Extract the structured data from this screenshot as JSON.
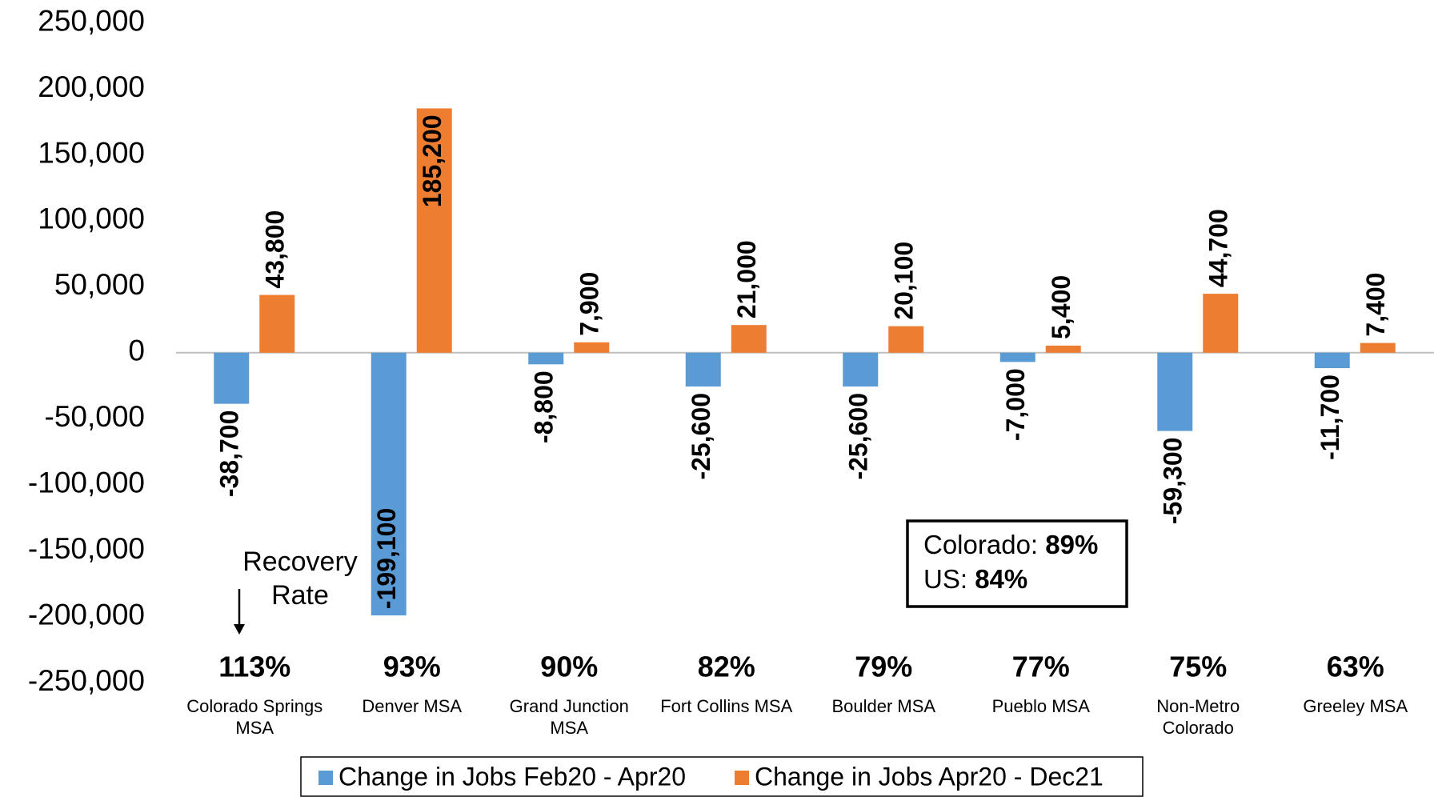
{
  "chart_data": {
    "type": "bar",
    "categories": [
      [
        "Colorado Springs",
        "MSA"
      ],
      [
        "Denver MSA"
      ],
      [
        "Grand Junction",
        "MSA"
      ],
      [
        "Fort Collins MSA"
      ],
      [
        "Boulder MSA"
      ],
      [
        "Pueblo MSA"
      ],
      [
        "Non-Metro",
        "Colorado"
      ],
      [
        "Greeley MSA"
      ]
    ],
    "series": [
      {
        "name": "Change in Jobs Feb20 - Apr20",
        "color": "#5b9bd5",
        "values": [
          -38700,
          -199100,
          -8800,
          -25600,
          -25600,
          -7000,
          -59300,
          -11700
        ],
        "value_labels": [
          "-38,700",
          "-199,100",
          "-8,800",
          "-25,600",
          "-25,600",
          "-7,000",
          "-59,300",
          "-11,700"
        ]
      },
      {
        "name": "Change in Jobs Apr20 - Dec21",
        "color": "#ed7d31",
        "values": [
          43800,
          185200,
          7900,
          21000,
          20100,
          5400,
          44700,
          7400
        ],
        "value_labels": [
          "43,800",
          "185,200",
          "7,900",
          "21,000",
          "20,100",
          "5,400",
          "44,700",
          "7,400"
        ]
      }
    ],
    "recovery_rates": [
      113,
      93,
      90,
      82,
      79,
      77,
      75,
      63
    ],
    "recovery_rate_labels": [
      "113%",
      "93%",
      "90%",
      "82%",
      "79%",
      "77%",
      "75%",
      "63%"
    ],
    "recovery_annotation": [
      "Recovery",
      "Rate"
    ],
    "summary_box": [
      {
        "label": "Colorado:",
        "value": "89%"
      },
      {
        "label": "US:",
        "value": "84%"
      }
    ],
    "ylim": [
      -250000,
      250000
    ],
    "yticks": [
      {
        "value": -250000,
        "label": "-250,000"
      },
      {
        "value": -200000,
        "label": "-200,000"
      },
      {
        "value": -150000,
        "label": "-150,000"
      },
      {
        "value": -100000,
        "label": "-100,000"
      },
      {
        "value": -50000,
        "label": "-50,000"
      },
      0,
      {
        "value": 50000,
        "label": "50,000"
      },
      {
        "value": 100000,
        "label": "100,000"
      },
      {
        "value": 150000,
        "label": "150,000"
      },
      {
        "value": 200000,
        "label": "200,000"
      },
      {
        "value": 250000,
        "label": "250,000"
      }
    ],
    "grid": false
  }
}
